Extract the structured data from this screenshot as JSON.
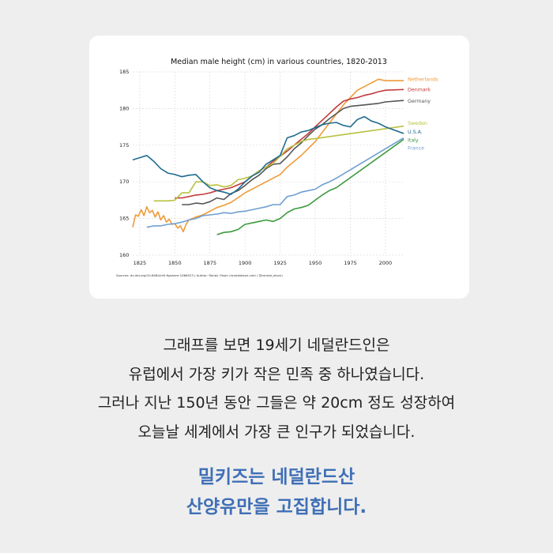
{
  "chart_data": {
    "type": "line",
    "title": "Median male height (cm) in various countries, 1820-2013",
    "xlabel": "",
    "ylabel": "",
    "xlim": [
      1820,
      2013
    ],
    "ylim": [
      160,
      185
    ],
    "x_ticks": [
      1825,
      1850,
      1875,
      1900,
      1925,
      1950,
      1975,
      2000
    ],
    "y_ticks": [
      160,
      165,
      170,
      175,
      180,
      185
    ],
    "grid": true,
    "legend_placement": "right, at line ends",
    "series": [
      {
        "name": "Netherlands",
        "color": "#ef9a3a",
        "points": [
          [
            1820,
            163.8
          ],
          [
            1822,
            165.5
          ],
          [
            1824,
            165.3
          ],
          [
            1826,
            166.2
          ],
          [
            1828,
            165.4
          ],
          [
            1830,
            166.6
          ],
          [
            1832,
            165.8
          ],
          [
            1834,
            166.1
          ],
          [
            1836,
            165.2
          ],
          [
            1838,
            165.9
          ],
          [
            1840,
            164.8
          ],
          [
            1842,
            165.4
          ],
          [
            1844,
            164.5
          ],
          [
            1846,
            164.9
          ],
          [
            1848,
            164.2
          ],
          [
            1850,
            164.3
          ],
          [
            1852,
            163.7
          ],
          [
            1854,
            164.0
          ],
          [
            1856,
            163.2
          ],
          [
            1858,
            164.2
          ],
          [
            1860,
            164.8
          ],
          [
            1865,
            165.2
          ],
          [
            1870,
            165.5
          ],
          [
            1875,
            166.0
          ],
          [
            1880,
            166.5
          ],
          [
            1885,
            166.8
          ],
          [
            1890,
            167.2
          ],
          [
            1900,
            168.5
          ],
          [
            1910,
            169.5
          ],
          [
            1920,
            170.5
          ],
          [
            1925,
            171.0
          ],
          [
            1930,
            172.0
          ],
          [
            1940,
            173.6
          ],
          [
            1950,
            175.5
          ],
          [
            1960,
            178.0
          ],
          [
            1970,
            180.5
          ],
          [
            1980,
            182.5
          ],
          [
            1990,
            183.5
          ],
          [
            1995,
            184.0
          ],
          [
            2000,
            183.8
          ],
          [
            2013,
            183.8
          ]
        ]
      },
      {
        "name": "Denmark",
        "color": "#c23b3b",
        "points": [
          [
            1850,
            167.8
          ],
          [
            1855,
            167.8
          ],
          [
            1860,
            168.0
          ],
          [
            1865,
            168.2
          ],
          [
            1870,
            168.3
          ],
          [
            1875,
            168.5
          ],
          [
            1880,
            168.8
          ],
          [
            1885,
            169.0
          ],
          [
            1890,
            169.2
          ],
          [
            1895,
            169.6
          ],
          [
            1900,
            170.0
          ],
          [
            1905,
            170.8
          ],
          [
            1910,
            171.5
          ],
          [
            1915,
            172.0
          ],
          [
            1920,
            172.8
          ],
          [
            1925,
            173.5
          ],
          [
            1930,
            174.2
          ],
          [
            1935,
            175.0
          ],
          [
            1940,
            175.8
          ],
          [
            1945,
            176.6
          ],
          [
            1950,
            177.5
          ],
          [
            1955,
            178.4
          ],
          [
            1960,
            179.3
          ],
          [
            1965,
            180.2
          ],
          [
            1970,
            181.0
          ],
          [
            1975,
            181.3
          ],
          [
            1980,
            181.5
          ],
          [
            1985,
            181.8
          ],
          [
            1990,
            182.0
          ],
          [
            1995,
            182.3
          ],
          [
            2000,
            182.5
          ],
          [
            2013,
            182.6
          ]
        ]
      },
      {
        "name": "Germany",
        "color": "#555555",
        "points": [
          [
            1855,
            166.9
          ],
          [
            1860,
            166.9
          ],
          [
            1865,
            167.1
          ],
          [
            1870,
            167.0
          ],
          [
            1875,
            167.3
          ],
          [
            1880,
            167.8
          ],
          [
            1885,
            167.6
          ],
          [
            1890,
            168.4
          ],
          [
            1895,
            168.8
          ],
          [
            1900,
            169.5
          ],
          [
            1905,
            170.3
          ],
          [
            1910,
            170.9
          ],
          [
            1915,
            171.8
          ],
          [
            1920,
            172.4
          ],
          [
            1925,
            172.5
          ],
          [
            1930,
            173.4
          ],
          [
            1935,
            174.5
          ],
          [
            1940,
            175.3
          ],
          [
            1945,
            176.3
          ],
          [
            1950,
            177.2
          ],
          [
            1955,
            177.8
          ],
          [
            1960,
            178.6
          ],
          [
            1965,
            179.3
          ],
          [
            1970,
            180.0
          ],
          [
            1975,
            180.3
          ],
          [
            1980,
            180.4
          ],
          [
            1985,
            180.5
          ],
          [
            1990,
            180.6
          ],
          [
            1995,
            180.7
          ],
          [
            2000,
            180.9
          ],
          [
            2013,
            181.1
          ]
        ]
      },
      {
        "name": "Sweden",
        "color": "#b8c23f",
        "points": [
          [
            1835,
            167.4
          ],
          [
            1840,
            167.4
          ],
          [
            1845,
            167.4
          ],
          [
            1850,
            167.5
          ],
          [
            1855,
            168.5
          ],
          [
            1860,
            168.5
          ],
          [
            1865,
            170.0
          ],
          [
            1870,
            170.0
          ],
          [
            1875,
            169.5
          ],
          [
            1880,
            169.6
          ],
          [
            1885,
            169.3
          ],
          [
            1890,
            169.5
          ],
          [
            1895,
            170.3
          ],
          [
            1900,
            170.5
          ],
          [
            1905,
            170.8
          ],
          [
            1910,
            171.5
          ],
          [
            1915,
            172.0
          ],
          [
            1920,
            172.5
          ],
          [
            1925,
            173.5
          ],
          [
            1930,
            174.5
          ],
          [
            1935,
            175.0
          ],
          [
            1940,
            175.5
          ],
          [
            1945,
            175.8
          ],
          [
            1950,
            175.9
          ],
          [
            2013,
            177.6
          ]
        ]
      },
      {
        "name": "U.S.A.",
        "color": "#1f6b8f",
        "points": [
          [
            1820,
            173.0
          ],
          [
            1825,
            173.3
          ],
          [
            1830,
            173.6
          ],
          [
            1835,
            172.8
          ],
          [
            1840,
            171.8
          ],
          [
            1845,
            171.2
          ],
          [
            1850,
            171.0
          ],
          [
            1855,
            170.7
          ],
          [
            1860,
            170.9
          ],
          [
            1865,
            171.0
          ],
          [
            1870,
            170.0
          ],
          [
            1875,
            169.2
          ],
          [
            1880,
            168.8
          ],
          [
            1885,
            168.6
          ],
          [
            1890,
            168.3
          ],
          [
            1895,
            169.0
          ],
          [
            1900,
            170.0
          ],
          [
            1905,
            170.8
          ],
          [
            1910,
            171.3
          ],
          [
            1915,
            172.4
          ],
          [
            1920,
            173.0
          ],
          [
            1925,
            173.6
          ],
          [
            1930,
            176.0
          ],
          [
            1935,
            176.3
          ],
          [
            1940,
            176.8
          ],
          [
            1945,
            177.0
          ],
          [
            1950,
            177.4
          ],
          [
            1955,
            177.8
          ],
          [
            1960,
            178.0
          ],
          [
            1965,
            178.1
          ],
          [
            1970,
            177.7
          ],
          [
            1975,
            177.5
          ],
          [
            1980,
            178.5
          ],
          [
            1985,
            178.9
          ],
          [
            1990,
            178.3
          ],
          [
            1995,
            178.0
          ],
          [
            2000,
            177.5
          ],
          [
            2013,
            176.6
          ]
        ]
      },
      {
        "name": "Italy",
        "color": "#3d9a3d",
        "points": [
          [
            1880,
            162.8
          ],
          [
            1885,
            163.1
          ],
          [
            1890,
            163.2
          ],
          [
            1895,
            163.5
          ],
          [
            1900,
            164.2
          ],
          [
            1905,
            164.4
          ],
          [
            1910,
            164.6
          ],
          [
            1915,
            164.8
          ],
          [
            1920,
            164.6
          ],
          [
            1925,
            165.0
          ],
          [
            1930,
            165.8
          ],
          [
            1935,
            166.3
          ],
          [
            1940,
            166.5
          ],
          [
            1945,
            166.8
          ],
          [
            1950,
            167.5
          ],
          [
            1955,
            168.2
          ],
          [
            1960,
            168.8
          ],
          [
            1965,
            169.2
          ],
          [
            2013,
            175.8
          ]
        ]
      },
      {
        "name": "France",
        "color": "#6f9fd0",
        "points": [
          [
            1830,
            163.8
          ],
          [
            1835,
            164.0
          ],
          [
            1840,
            164.0
          ],
          [
            1845,
            164.2
          ],
          [
            1850,
            164.3
          ],
          [
            1855,
            164.5
          ],
          [
            1860,
            164.8
          ],
          [
            1865,
            165.0
          ],
          [
            1870,
            165.4
          ],
          [
            1875,
            165.5
          ],
          [
            1880,
            165.6
          ],
          [
            1885,
            165.8
          ],
          [
            1890,
            165.7
          ],
          [
            1895,
            165.9
          ],
          [
            1900,
            166.0
          ],
          [
            1905,
            166.2
          ],
          [
            1910,
            166.4
          ],
          [
            1915,
            166.6
          ],
          [
            1920,
            166.9
          ],
          [
            1925,
            166.9
          ],
          [
            1930,
            168.0
          ],
          [
            1935,
            168.2
          ],
          [
            1940,
            168.6
          ],
          [
            1945,
            168.8
          ],
          [
            1950,
            169.0
          ],
          [
            1955,
            169.6
          ],
          [
            1960,
            170.0
          ],
          [
            1965,
            170.5
          ],
          [
            2013,
            176.0
          ]
        ]
      }
    ],
    "legend": [
      {
        "name": "Netherlands",
        "color": "#ef9a3a",
        "label_y": 184.0
      },
      {
        "name": "Denmark",
        "color": "#c23b3b",
        "label_y": 182.6
      },
      {
        "name": "Germany",
        "color": "#555555",
        "label_y": 181.0
      },
      {
        "name": "Sweden",
        "color": "#b8c23f",
        "label_y": 178.0
      },
      {
        "name": "U.S.A.",
        "color": "#1f6b8f",
        "label_y": 176.8
      },
      {
        "name": "Italy",
        "color": "#3d9a3d",
        "label_y": 175.7
      },
      {
        "name": "France",
        "color": "#6f9fd0",
        "label_y": 174.6
      }
    ],
    "source": "Sources: dx.doi.org/10.6084/m9.figshare.1066523 | Author: Randy Olson (randalolson.com / @randal_olson)"
  },
  "body": {
    "lines": [
      "그래프를 보면 19세기 네덜란드인은",
      "유럽에서 가장 키가 작은 민족 중 하나였습니다.",
      "그러나 지난 150년 동안 그들은 약 20cm 정도 성장하여",
      "오늘날 세계에서 가장 큰 인구가 되었습니다."
    ]
  },
  "highlight": {
    "lines": [
      "밀키즈는 네덜란드산",
      "산양유만을 고집합니다."
    ]
  }
}
